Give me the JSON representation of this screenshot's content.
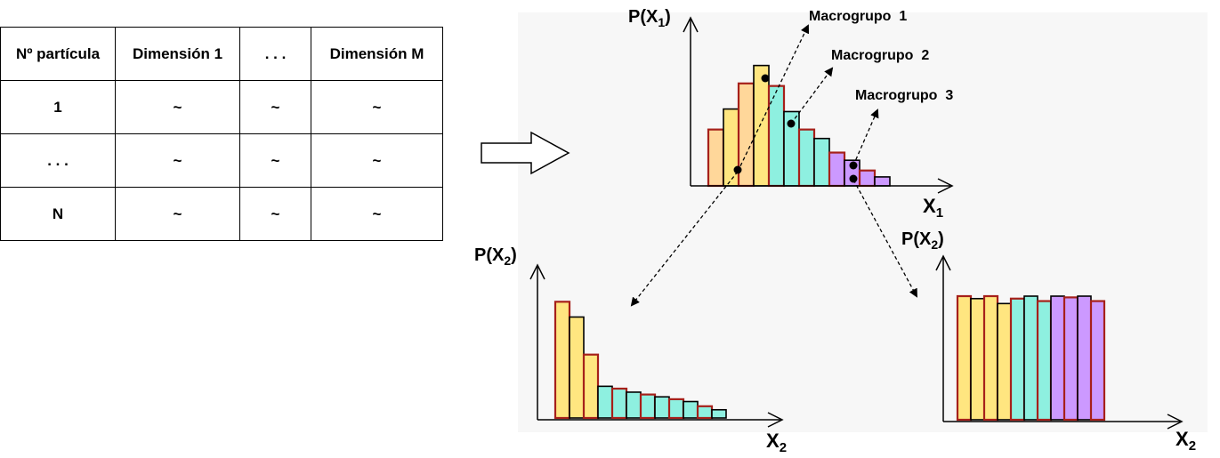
{
  "table": {
    "headers": [
      "Nº partícula",
      "Dimensión 1",
      ". . .",
      "Dimensión M"
    ],
    "rows": [
      [
        "1",
        "~",
        "~",
        "~"
      ],
      [
        ". . .",
        "~",
        "~",
        "~"
      ],
      [
        "N",
        "~",
        "~",
        "~"
      ]
    ]
  },
  "colors": {
    "yellow": "#ffe680",
    "orange": "#ffd79a",
    "teal": "#8ef0e0",
    "purple": "#cc99ff",
    "outline": "#a6201a",
    "panel": "#f7f7f7"
  },
  "top_chart": {
    "ylabel_main": "P(X",
    "ylabel_sub": "1",
    "ylabel_close": ")",
    "xlabel_main": "X",
    "xlabel_sub": "1",
    "bars": [
      {
        "value": 0.44,
        "group": 1
      },
      {
        "value": 0.6,
        "group": 1
      },
      {
        "value": 0.8,
        "group": 1
      },
      {
        "value": 0.94,
        "group": 1
      },
      {
        "value": 0.78,
        "group": 2
      },
      {
        "value": 0.58,
        "group": 2
      },
      {
        "value": 0.44,
        "group": 2
      },
      {
        "value": 0.37,
        "group": 2
      },
      {
        "value": 0.26,
        "group": 3
      },
      {
        "value": 0.2,
        "group": 3
      },
      {
        "value": 0.12,
        "group": 3
      },
      {
        "value": 0.07,
        "group": 3
      }
    ],
    "groups": [
      {
        "label": "Macrogrupo  1"
      },
      {
        "label": "Macrogrupo  2"
      },
      {
        "label": "Macrogrupo  3"
      }
    ]
  },
  "bottom_left_chart": {
    "ylabel_main": "P(X",
    "ylabel_sub": "2",
    "ylabel_close": ")",
    "xlabel_main": "X",
    "xlabel_sub": "2",
    "bars": [
      {
        "value": 0.99,
        "group": 1
      },
      {
        "value": 0.86,
        "group": 1
      },
      {
        "value": 0.54,
        "group": 1
      },
      {
        "value": 0.27,
        "group": 2
      },
      {
        "value": 0.25,
        "group": 2
      },
      {
        "value": 0.22,
        "group": 2
      },
      {
        "value": 0.2,
        "group": 2
      },
      {
        "value": 0.18,
        "group": 2
      },
      {
        "value": 0.16,
        "group": 2
      },
      {
        "value": 0.14,
        "group": 2
      },
      {
        "value": 0.1,
        "group": 2
      },
      {
        "value": 0.07,
        "group": 2
      }
    ]
  },
  "bottom_right_chart": {
    "ylabel_main": "P(X",
    "ylabel_sub": "2",
    "ylabel_close": ")",
    "xlabel_main": "X",
    "xlabel_sub": "2",
    "bars": [
      {
        "value": 1.0,
        "group": 1
      },
      {
        "value": 0.98,
        "group": 1
      },
      {
        "value": 1.0,
        "group": 1
      },
      {
        "value": 0.94,
        "group": 1
      },
      {
        "value": 0.98,
        "group": 2
      },
      {
        "value": 1.0,
        "group": 2
      },
      {
        "value": 0.96,
        "group": 2
      },
      {
        "value": 1.0,
        "group": 3
      },
      {
        "value": 0.99,
        "group": 3
      },
      {
        "value": 1.0,
        "group": 3
      },
      {
        "value": 0.96,
        "group": 3
      }
    ]
  }
}
